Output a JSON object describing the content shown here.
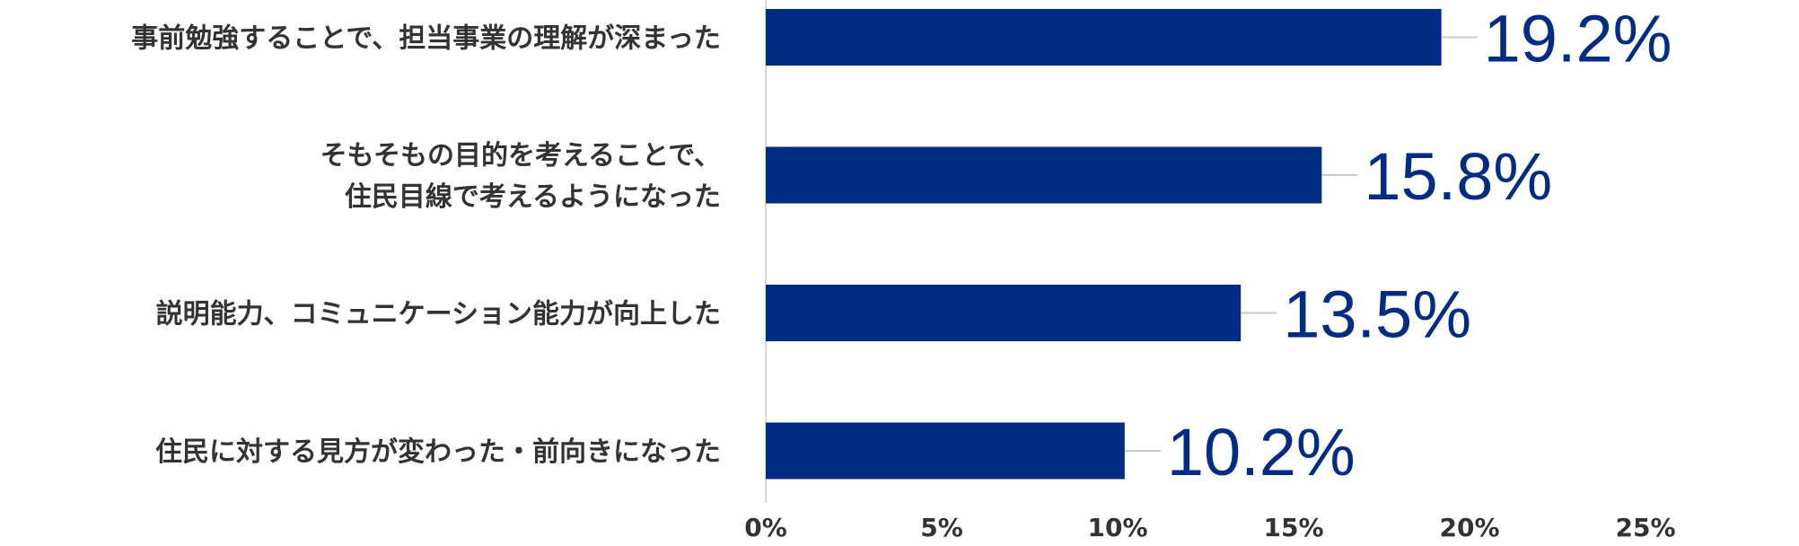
{
  "chart_data": {
    "type": "bar",
    "orientation": "horizontal",
    "title": "",
    "xlabel": "",
    "ylabel": "",
    "categories": [
      [
        "事前勉強することで、担当事業の理解が深まった"
      ],
      [
        "そもそもの目的を考えることで、",
        "住民目線で考えるようになった"
      ],
      [
        "説明能力、コミュニケーション能力が向上した"
      ],
      [
        "住民に対する見方が変わった・前向きになった"
      ]
    ],
    "values": [
      19.2,
      15.8,
      13.5,
      10.2
    ],
    "value_labels": [
      "19.2%",
      "15.8%",
      "13.5%",
      "10.2%"
    ],
    "xlim": [
      0,
      25
    ],
    "x_ticks": [
      0,
      5,
      10,
      15,
      20,
      25
    ],
    "x_tick_labels": [
      "0%",
      "5%",
      "10%",
      "15%",
      "20%",
      "25%"
    ],
    "grid": false,
    "legend": "none",
    "bar_color": "#002c84",
    "label_color": "#002c84",
    "leader_line_color": "#c8c8c8",
    "axis_line_color": "#d9d9d9",
    "text_color": "#333333"
  }
}
